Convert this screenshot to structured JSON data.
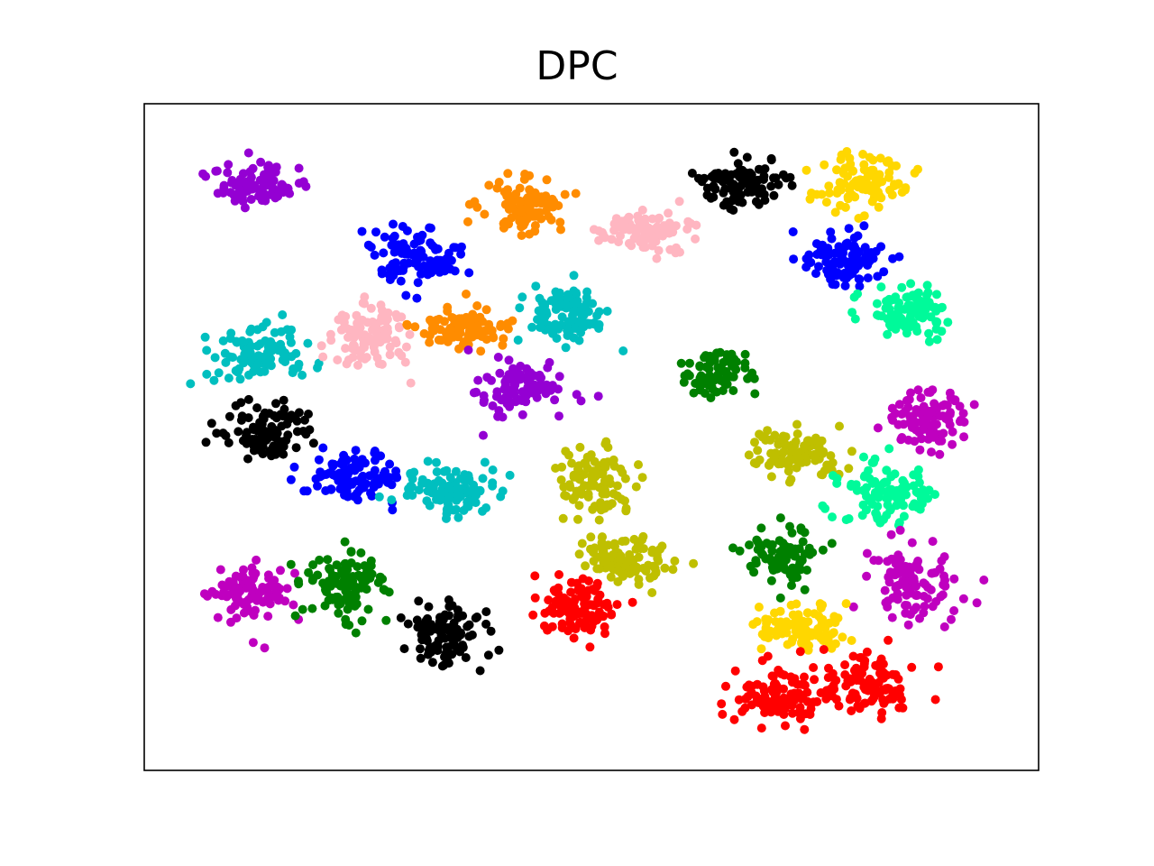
{
  "chart_data": {
    "type": "scatter",
    "title": "DPC",
    "xlabel": "",
    "ylabel": "",
    "xlim": [
      0,
      100
    ],
    "ylim": [
      0,
      100
    ],
    "grid": false,
    "legend": "none",
    "clusters": [
      {
        "color": "#9400d3",
        "center": [
          13,
          88
        ],
        "spread": [
          2.6,
          1.7
        ],
        "n": 90
      },
      {
        "color": "#0000ff",
        "center": [
          30,
          77
        ],
        "spread": [
          2.3,
          2.1
        ],
        "n": 100
      },
      {
        "color": "#ff8c00",
        "center": [
          42.5,
          84.5
        ],
        "spread": [
          2.1,
          2.3
        ],
        "n": 100
      },
      {
        "color": "#ffb6c1",
        "center": [
          56,
          81
        ],
        "spread": [
          2.6,
          1.6
        ],
        "n": 90
      },
      {
        "color": "#000000",
        "center": [
          67,
          88
        ],
        "spread": [
          2.4,
          1.6
        ],
        "n": 100
      },
      {
        "color": "#ffd700",
        "center": [
          80,
          88
        ],
        "spread": [
          2.6,
          2.2
        ],
        "n": 100
      },
      {
        "color": "#0000ff",
        "center": [
          78.5,
          76.5
        ],
        "spread": [
          2.3,
          2.0
        ],
        "n": 100
      },
      {
        "color": "#00fa9a",
        "center": [
          85.5,
          69
        ],
        "spread": [
          2.4,
          2.0
        ],
        "n": 100
      },
      {
        "color": "#00bfbf",
        "center": [
          13,
          62.5
        ],
        "spread": [
          2.6,
          2.1
        ],
        "n": 100
      },
      {
        "color": "#ffb6c1",
        "center": [
          24.5,
          65.5
        ],
        "spread": [
          2.4,
          2.4
        ],
        "n": 100
      },
      {
        "color": "#ff8c00",
        "center": [
          36,
          66.5
        ],
        "spread": [
          2.3,
          1.5
        ],
        "n": 100
      },
      {
        "color": "#00bfbf",
        "center": [
          47,
          68.5
        ],
        "spread": [
          2.3,
          2.2
        ],
        "n": 100
      },
      {
        "color": "#9400d3",
        "center": [
          42.5,
          57
        ],
        "spread": [
          2.6,
          2.0
        ],
        "n": 100
      },
      {
        "color": "#008000",
        "center": [
          64,
          59.5
        ],
        "spread": [
          2.0,
          1.9
        ],
        "n": 80
      },
      {
        "color": "#bf00bf",
        "center": [
          88,
          53
        ],
        "spread": [
          2.2,
          2.2
        ],
        "n": 100
      },
      {
        "color": "#000000",
        "center": [
          14,
          50.5
        ],
        "spread": [
          2.4,
          2.3
        ],
        "n": 100
      },
      {
        "color": "#0000ff",
        "center": [
          23.5,
          44
        ],
        "spread": [
          2.5,
          1.9
        ],
        "n": 100
      },
      {
        "color": "#00bfbf",
        "center": [
          34,
          42
        ],
        "spread": [
          2.5,
          1.9
        ],
        "n": 100
      },
      {
        "color": "#bfbf00",
        "center": [
          50.5,
          43
        ],
        "spread": [
          2.2,
          2.6
        ],
        "n": 100
      },
      {
        "color": "#bfbf00",
        "center": [
          72.5,
          47.5
        ],
        "spread": [
          2.3,
          1.9
        ],
        "n": 100
      },
      {
        "color": "#00fa9a",
        "center": [
          83.5,
          42
        ],
        "spread": [
          2.6,
          2.4
        ],
        "n": 100
      },
      {
        "color": "#bfbf00",
        "center": [
          54,
          31.5
        ],
        "spread": [
          2.6,
          1.8
        ],
        "n": 100
      },
      {
        "color": "#008000",
        "center": [
          71.5,
          32.5
        ],
        "spread": [
          2.1,
          2.0
        ],
        "n": 80
      },
      {
        "color": "#bf00bf",
        "center": [
          12,
          27
        ],
        "spread": [
          2.4,
          2.2
        ],
        "n": 100
      },
      {
        "color": "#008000",
        "center": [
          22.5,
          27.5
        ],
        "spread": [
          2.3,
          2.3
        ],
        "n": 100
      },
      {
        "color": "#000000",
        "center": [
          33.5,
          20.5
        ],
        "spread": [
          2.2,
          2.3
        ],
        "n": 100
      },
      {
        "color": "#ff0000",
        "center": [
          48.5,
          24.5
        ],
        "spread": [
          2.4,
          1.9
        ],
        "n": 100
      },
      {
        "color": "#bf00bf",
        "center": [
          86,
          28
        ],
        "spread": [
          2.2,
          2.6
        ],
        "n": 100
      },
      {
        "color": "#ffd700",
        "center": [
          74,
          21.5
        ],
        "spread": [
          2.5,
          1.8
        ],
        "n": 100
      },
      {
        "color": "#ff0000",
        "center": [
          70.5,
          11
        ],
        "spread": [
          2.5,
          2.2
        ],
        "n": 100
      },
      {
        "color": "#ff0000",
        "center": [
          81,
          12.5
        ],
        "spread": [
          2.5,
          2.2
        ],
        "n": 100
      }
    ]
  }
}
